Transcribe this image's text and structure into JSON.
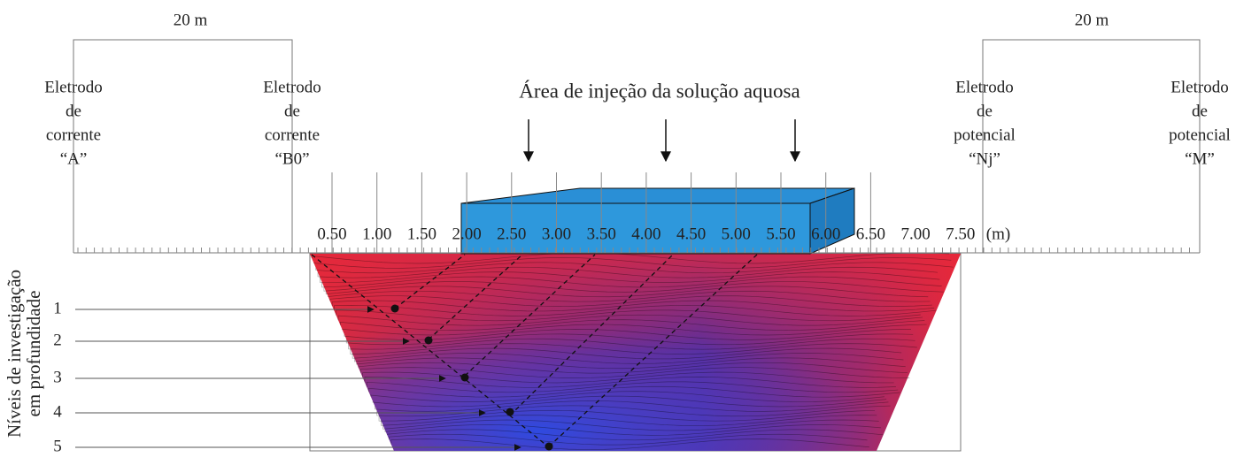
{
  "top_labels": {
    "left_spacing": "20 m",
    "right_spacing": "20 m"
  },
  "electrodes": [
    {
      "lines": [
        "Eletrodo",
        "de",
        "corrente",
        "“A”"
      ]
    },
    {
      "lines": [
        "Eletrodo",
        "de",
        "corrente",
        "“B0”"
      ]
    },
    {
      "lines": [
        "Eletrodo",
        "de",
        "potencial",
        "“Nj”"
      ]
    },
    {
      "lines": [
        "Eletrodo",
        "de",
        "potencial",
        "“M”"
      ]
    }
  ],
  "injection_label": "Área de injeção da solução aquosa",
  "scale": {
    "labels": [
      "0.50",
      "1.00",
      "1.50",
      "2.00",
      "2.50",
      "3.00",
      "3.50",
      "4.00",
      "4.50",
      "5.00",
      "5.50",
      "6.00",
      "6.50",
      "7.00",
      "7.50"
    ],
    "unit": "(m)"
  },
  "depth": {
    "title": [
      "Níveis de investigação",
      "em profundidade"
    ],
    "levels": [
      "1",
      "2",
      "3",
      "4",
      "5"
    ]
  }
}
